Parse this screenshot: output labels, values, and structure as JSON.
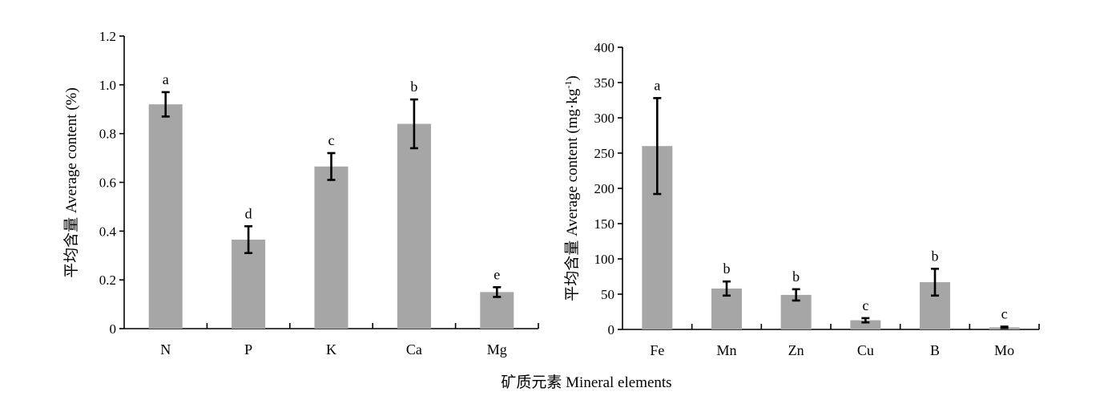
{
  "figure": {
    "xlabel": "矿质元素 Mineral elements"
  },
  "chart_data": [
    {
      "type": "bar",
      "title": "",
      "xlabel": "",
      "ylabel_main": "平均含量 Average content (%)",
      "ylim": [
        0,
        1.2
      ],
      "yticks": [
        0,
        0.2,
        0.4,
        0.6,
        0.8,
        1.0,
        1.2
      ],
      "ytick_labels": [
        "0",
        "0.2",
        "0.4",
        "0.6",
        "0.8",
        "1.0",
        "1.2"
      ],
      "categories": [
        "N",
        "P",
        "K",
        "Ca",
        "Mg"
      ],
      "values": [
        0.92,
        0.365,
        0.665,
        0.84,
        0.15
      ],
      "errors": [
        0.05,
        0.055,
        0.055,
        0.1,
        0.02
      ],
      "significance": [
        "a",
        "d",
        "c",
        "b",
        "e"
      ],
      "bar_color": "#a6a6a6"
    },
    {
      "type": "bar",
      "title": "",
      "xlabel": "",
      "ylabel_main": "平均含量 Average content (mg·kg",
      "ylabel_sup": "-1",
      "ylabel_end": ")",
      "ylim": [
        0,
        400
      ],
      "yticks": [
        0,
        50,
        100,
        150,
        200,
        250,
        300,
        350,
        400
      ],
      "ytick_labels": [
        "0",
        "50",
        "100",
        "150",
        "200",
        "250",
        "300",
        "350",
        "400"
      ],
      "categories": [
        "Fe",
        "Mn",
        "Zn",
        "Cu",
        "B",
        "Mo"
      ],
      "values": [
        260,
        58,
        49,
        13,
        67,
        3
      ],
      "errors": [
        68,
        10,
        8,
        3,
        19,
        1
      ],
      "significance": [
        "a",
        "b",
        "b",
        "c",
        "b",
        "c"
      ],
      "bar_color": "#a6a6a6"
    }
  ]
}
